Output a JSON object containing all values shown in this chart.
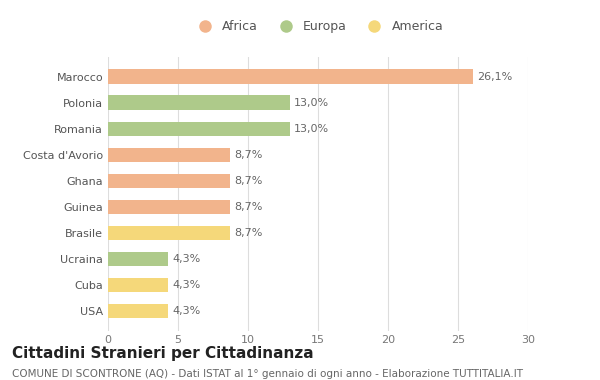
{
  "categories": [
    "Marocco",
    "Polonia",
    "Romania",
    "Costa d'Avorio",
    "Ghana",
    "Guinea",
    "Brasile",
    "Ucraina",
    "Cuba",
    "USA"
  ],
  "values": [
    26.1,
    13.0,
    13.0,
    8.7,
    8.7,
    8.7,
    8.7,
    4.3,
    4.3,
    4.3
  ],
  "labels": [
    "26,1%",
    "13,0%",
    "13,0%",
    "8,7%",
    "8,7%",
    "8,7%",
    "8,7%",
    "4,3%",
    "4,3%",
    "4,3%"
  ],
  "colors": [
    "#F2B48C",
    "#AECA8A",
    "#AECA8A",
    "#F2B48C",
    "#F2B48C",
    "#F2B48C",
    "#F5D87A",
    "#AECA8A",
    "#F5D87A",
    "#F5D87A"
  ],
  "legend": [
    {
      "label": "Africa",
      "color": "#F2B48C"
    },
    {
      "label": "Europa",
      "color": "#AECA8A"
    },
    {
      "label": "America",
      "color": "#F5D87A"
    }
  ],
  "xlim": [
    0,
    30
  ],
  "xticks": [
    0,
    5,
    10,
    15,
    20,
    25,
    30
  ],
  "title": "Cittadini Stranieri per Cittadinanza",
  "subtitle": "COMUNE DI SCONTRONE (AQ) - Dati ISTAT al 1° gennaio di ogni anno - Elaborazione TUTTITALIA.IT",
  "background_color": "#ffffff",
  "grid_color": "#dddddd",
  "bar_height": 0.55,
  "label_fontsize": 8,
  "tick_fontsize": 8,
  "title_fontsize": 11,
  "subtitle_fontsize": 7.5,
  "legend_fontsize": 9
}
